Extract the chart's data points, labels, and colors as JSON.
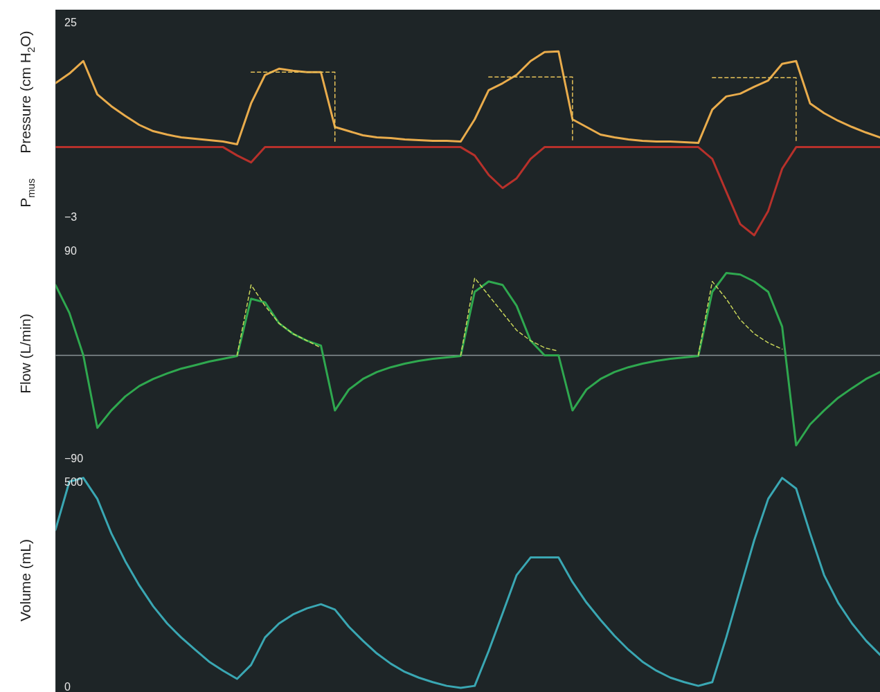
{
  "chart_data": [
    {
      "type": "line",
      "ylabel": "Pressure (cm H$_{2}$O)",
      "categories": [
        null,
        null,
        null,
        null,
        null,
        null,
        null,
        null,
        null,
        null,
        null,
        null,
        null,
        null,
        null,
        null,
        null,
        null,
        null,
        null,
        null,
        null,
        null,
        null,
        null,
        null,
        null,
        null,
        null,
        null,
        null,
        null,
        null,
        null,
        null,
        null,
        null,
        null,
        null,
        null,
        null,
        null,
        null,
        null,
        null,
        null,
        null,
        null,
        null,
        null,
        null,
        null,
        null,
        null,
        null,
        null,
        null,
        null,
        null,
        null
      ],
      "series": [
        {
          "color": "#e9ac4c",
          "values": [
            16.4,
            17.8,
            19.6,
            14.8,
            13.1,
            11.7,
            10.4,
            9.5,
            9.0,
            8.6,
            8.4,
            8.2,
            8.0,
            7.6,
            13.5,
            17.6,
            18.5,
            18.2,
            18.0,
            18.0,
            10.1,
            9.5,
            8.9,
            8.6,
            8.5,
            8.3,
            8.2,
            8.1,
            8.1,
            8.0,
            11.2,
            15.4,
            16.4,
            17.6,
            19.6,
            20.9,
            21.0,
            11.2,
            10.1,
            9.0,
            8.6,
            8.3,
            8.1,
            8.0,
            8.0,
            7.9,
            7.8,
            12.6,
            14.5,
            14.9,
            15.9,
            16.8,
            19.2,
            19.6,
            13.5,
            12.1,
            11.0,
            10.1,
            9.3,
            8.6
          ]
        },
        {
          "name": "P$_{mus}$",
          "color": "#b7312b",
          "values": [
            7.2,
            7.2,
            7.2,
            7.2,
            7.2,
            7.2,
            7.2,
            7.2,
            7.2,
            7.2,
            7.2,
            7.2,
            7.2,
            6.0,
            5.0,
            7.2,
            7.2,
            7.2,
            7.2,
            7.2,
            7.2,
            7.2,
            7.2,
            7.2,
            7.2,
            7.2,
            7.2,
            7.2,
            7.2,
            7.2,
            6.0,
            3.2,
            1.3,
            2.7,
            5.5,
            7.2,
            7.2,
            7.2,
            7.2,
            7.2,
            7.2,
            7.2,
            7.2,
            7.2,
            7.2,
            7.2,
            7.2,
            5.5,
            0.8,
            -3.9,
            -5.5,
            -2.0,
            4.1,
            7.2,
            7.2,
            7.2,
            7.2,
            7.2,
            7.2,
            7.2
          ]
        },
        {
          "type": "step",
          "line_style": "dashed",
          "color": "#e8c35a",
          "values": [
            null,
            null,
            null,
            null,
            null,
            null,
            null,
            null,
            null,
            null,
            null,
            null,
            null,
            null,
            18.0,
            18.0,
            18.0,
            18.0,
            18.0,
            18.0,
            7.9,
            null,
            null,
            null,
            null,
            null,
            null,
            null,
            null,
            null,
            null,
            17.3,
            17.3,
            17.3,
            17.3,
            17.3,
            17.3,
            7.9,
            null,
            null,
            null,
            null,
            null,
            null,
            null,
            null,
            null,
            17.2,
            17.2,
            17.2,
            17.2,
            17.2,
            17.2,
            7.9,
            null,
            null,
            null,
            null,
            null,
            null
          ]
        }
      ],
      "ylim": [
        -6,
        27
      ],
      "yticks": [
        25,
        {
          "value": -3,
          "label": "−3"
        }
      ],
      "tick_labels": "y"
    },
    {
      "type": "line",
      "ylabel": "Flow (L/min)",
      "categories": [
        null,
        null,
        null,
        null,
        null,
        null,
        null,
        null,
        null,
        null,
        null,
        null,
        null,
        null,
        null,
        null,
        null,
        null,
        null,
        null,
        null,
        null,
        null,
        null,
        null,
        null,
        null,
        null,
        null,
        null,
        null,
        null,
        null,
        null,
        null,
        null,
        null,
        null,
        null,
        null,
        null,
        null,
        null,
        null,
        null,
        null,
        null,
        null,
        null,
        null,
        null,
        null,
        null,
        null,
        null,
        null,
        null,
        null,
        null,
        null
      ],
      "series": [
        {
          "color": "#2fa84f",
          "values": [
            61,
            36.8,
            0,
            -62.8,
            -47.7,
            -35.6,
            -26.6,
            -20.5,
            -15.7,
            -11.5,
            -8.5,
            -5.4,
            -3.0,
            -0.6,
            49,
            45.9,
            27.8,
            18.7,
            12.7,
            8.5,
            -47.7,
            -29.6,
            -20.5,
            -14.5,
            -10.3,
            -7.2,
            -4.8,
            -3.0,
            -1.8,
            -0.6,
            55,
            64,
            61,
            42.9,
            12.7,
            0,
            0,
            -47.7,
            -29.6,
            -20.5,
            -14.5,
            -10.3,
            -7.2,
            -4.8,
            -3.0,
            -1.8,
            -0.6,
            55,
            71.3,
            70,
            64,
            55,
            24.8,
            -77.9,
            -59.8,
            -47.7,
            -36.8,
            -28.4,
            -20.5,
            -14.5
          ]
        },
        {
          "line_style": "dashed",
          "color": "#c9d65a",
          "values": [
            null,
            null,
            null,
            null,
            null,
            null,
            null,
            null,
            null,
            null,
            null,
            null,
            null,
            0,
            61,
            42.9,
            27.8,
            18.7,
            12.7,
            6.6,
            null,
            null,
            null,
            null,
            null,
            null,
            null,
            null,
            null,
            0,
            67,
            51.9,
            36.8,
            21.7,
            12.7,
            6.6,
            3.6,
            null,
            null,
            null,
            null,
            null,
            null,
            null,
            null,
            null,
            0,
            64,
            48.9,
            30.8,
            18.7,
            10.9,
            5.4,
            null,
            null,
            null,
            null,
            null,
            null,
            null
          ]
        }
      ],
      "ylim": [
        -98,
        101
      ],
      "yticks": [
        90,
        {
          "value": -90,
          "label": "−90"
        }
      ],
      "tick_labels": "y",
      "ref_lines": [
        {
          "axis": "y",
          "value": 0,
          "color": "#8a9496"
        }
      ]
    },
    {
      "type": "line",
      "ylabel": "Volume (mL)",
      "categories": [
        null,
        null,
        null,
        null,
        null,
        null,
        null,
        null,
        null,
        null,
        null,
        null,
        null,
        null,
        null,
        null,
        null,
        null,
        null,
        null,
        null,
        null,
        null,
        null,
        null,
        null,
        null,
        null,
        null,
        null,
        null,
        null,
        null,
        null,
        null,
        null,
        null,
        null,
        null,
        null,
        null,
        null,
        null,
        null,
        null,
        null,
        null,
        null,
        null,
        null,
        null,
        null,
        null,
        null,
        null,
        null,
        null,
        null,
        null,
        null
      ],
      "series": [
        {
          "color": "#3aa7b3",
          "values": [
            385,
            503,
            512,
            461,
            377,
            309,
            250,
            199,
            157,
            123,
            93,
            64,
            42,
            22,
            56,
            123,
            157,
            179,
            194,
            204,
            191,
            149,
            115,
            84,
            59,
            39,
            25,
            14,
            5,
            0,
            5,
            90,
            182,
            275,
            318,
            318,
            318,
            258,
            208,
            166,
            127,
            93,
            64,
            42,
            25,
            14,
            5,
            14,
            123,
            242,
            360,
            461,
            512,
            486,
            377,
            275,
            208,
            157,
            115,
            81
          ]
        }
      ],
      "ylim": [
        -10,
        535
      ],
      "yticks": [
        500,
        0
      ],
      "tick_labels": "y"
    }
  ]
}
